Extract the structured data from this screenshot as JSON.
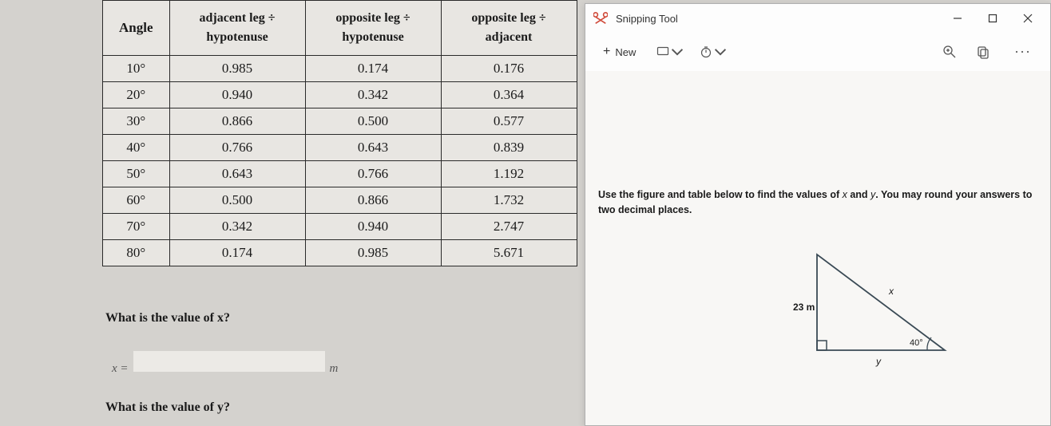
{
  "table": {
    "headers": [
      "Angle",
      "adjacent leg ÷\nhypotenuse",
      "opposite leg ÷\nhypotenuse",
      "opposite leg ÷\nadjacent"
    ],
    "rows": [
      [
        "10°",
        "0.985",
        "0.174",
        "0.176"
      ],
      [
        "20°",
        "0.940",
        "0.342",
        "0.364"
      ],
      [
        "30°",
        "0.866",
        "0.500",
        "0.577"
      ],
      [
        "40°",
        "0.766",
        "0.643",
        "0.839"
      ],
      [
        "50°",
        "0.643",
        "0.766",
        "1.192"
      ],
      [
        "60°",
        "0.500",
        "0.866",
        "1.732"
      ],
      [
        "70°",
        "0.342",
        "0.940",
        "2.747"
      ],
      [
        "80°",
        "0.174",
        "0.985",
        "5.671"
      ]
    ]
  },
  "questions": {
    "q1": "What is the value of x?",
    "ans_prefix": "x =",
    "ans_unit": "m",
    "q2": "What is the value of y?"
  },
  "snip": {
    "title": "Snipping Tool",
    "new_label": "New",
    "content_prompt": "Use the figure and table below to find the values of x and y. You may round your answers to two decimal places."
  },
  "triangle": {
    "side_left": "23 m",
    "hypotenuse_label": "x",
    "base_label": "y",
    "angle_label": "40°",
    "line_color": "#3a4a55",
    "font_size": 12
  },
  "style": {
    "table_border": "#2a2a2a",
    "table_bg": "#e8e6e2",
    "body_bg": "#d4d2ce",
    "text": "#1a1a1a"
  }
}
